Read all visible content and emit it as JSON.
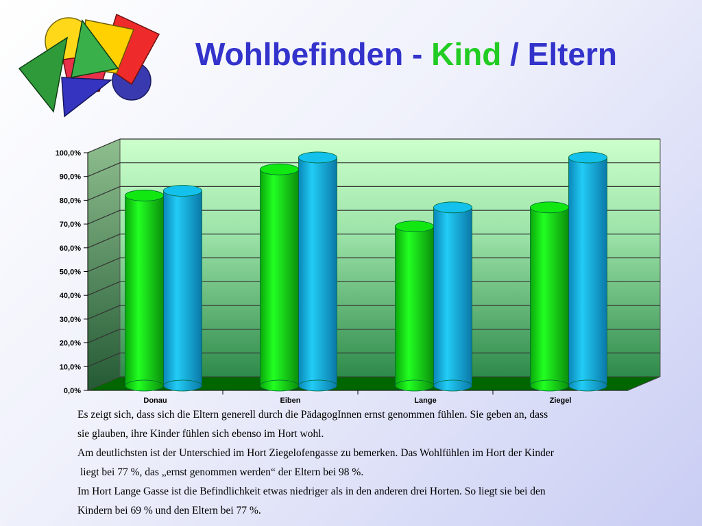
{
  "title": {
    "part1": "Wohlbefinden - ",
    "part2": "Kind",
    "part3": " / Eltern",
    "color_main": "#3333cc",
    "color_kind": "#22cc22"
  },
  "logo": {
    "icon": "geometric-shapes-logo"
  },
  "chart_data": {
    "type": "bar",
    "style": "3d-cylinder",
    "categories": [
      "Donau",
      "Eiben",
      "Lange",
      "Ziegel"
    ],
    "series": [
      {
        "color": "#11e811",
        "values": [
          82,
          93,
          69,
          77
        ]
      },
      {
        "color": "#14c0ec",
        "values": [
          84,
          98,
          77,
          98
        ]
      }
    ],
    "yticks": [
      "0,0%",
      "10,0%",
      "20,0%",
      "30,0%",
      "40,0%",
      "50,0%",
      "60,0%",
      "70,0%",
      "80,0%",
      "90,0%",
      "100,0%"
    ],
    "ylim": [
      0,
      100
    ],
    "grid": true,
    "legend": "none"
  },
  "body_text": [
    "Es zeigt sich, dass sich die Eltern generell durch die PädagogInnen ernst genommen fühlen. Sie geben an, dass",
    "sie glauben, ihre Kinder  fühlen sich ebenso im Hort wohl.",
    "Am deutlichsten ist der Unterschied im Hort Ziegelofengasse zu bemerken. Das Wohlfühlen im Hort der Kinder",
    " liegt bei 77 %, das „ernst genommen werden“ der Eltern bei 98 %.",
    "Im Hort Lange Gasse ist die Befindlichkeit etwas niedriger als in den anderen drei Horten. So liegt sie bei den",
    "Kindern bei 69 % und den Eltern bei 77 %."
  ]
}
